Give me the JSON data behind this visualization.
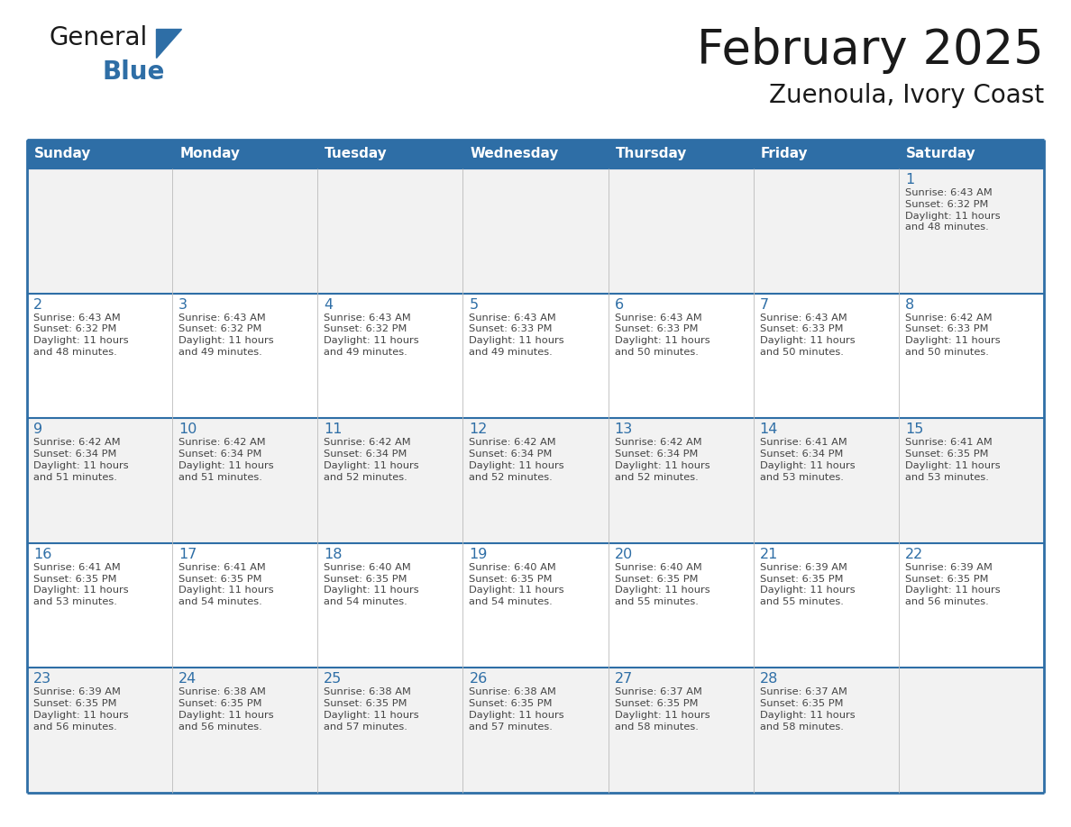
{
  "title": "February 2025",
  "subtitle": "Zuenoula, Ivory Coast",
  "header_bg": "#2E6EA6",
  "header_text_color": "#FFFFFF",
  "cell_bg_white": "#FFFFFF",
  "cell_bg_gray": "#F2F2F2",
  "border_color": "#2E6EA6",
  "border_color_light": "#AAAAAA",
  "day_number_color": "#2E6EA6",
  "cell_text_color": "#444444",
  "days_of_week": [
    "Sunday",
    "Monday",
    "Tuesday",
    "Wednesday",
    "Thursday",
    "Friday",
    "Saturday"
  ],
  "weeks": [
    [
      {
        "day": "",
        "info": ""
      },
      {
        "day": "",
        "info": ""
      },
      {
        "day": "",
        "info": ""
      },
      {
        "day": "",
        "info": ""
      },
      {
        "day": "",
        "info": ""
      },
      {
        "day": "",
        "info": ""
      },
      {
        "day": "1",
        "info": "Sunrise: 6:43 AM\nSunset: 6:32 PM\nDaylight: 11 hours\nand 48 minutes."
      }
    ],
    [
      {
        "day": "2",
        "info": "Sunrise: 6:43 AM\nSunset: 6:32 PM\nDaylight: 11 hours\nand 48 minutes."
      },
      {
        "day": "3",
        "info": "Sunrise: 6:43 AM\nSunset: 6:32 PM\nDaylight: 11 hours\nand 49 minutes."
      },
      {
        "day": "4",
        "info": "Sunrise: 6:43 AM\nSunset: 6:32 PM\nDaylight: 11 hours\nand 49 minutes."
      },
      {
        "day": "5",
        "info": "Sunrise: 6:43 AM\nSunset: 6:33 PM\nDaylight: 11 hours\nand 49 minutes."
      },
      {
        "day": "6",
        "info": "Sunrise: 6:43 AM\nSunset: 6:33 PM\nDaylight: 11 hours\nand 50 minutes."
      },
      {
        "day": "7",
        "info": "Sunrise: 6:43 AM\nSunset: 6:33 PM\nDaylight: 11 hours\nand 50 minutes."
      },
      {
        "day": "8",
        "info": "Sunrise: 6:42 AM\nSunset: 6:33 PM\nDaylight: 11 hours\nand 50 minutes."
      }
    ],
    [
      {
        "day": "9",
        "info": "Sunrise: 6:42 AM\nSunset: 6:34 PM\nDaylight: 11 hours\nand 51 minutes."
      },
      {
        "day": "10",
        "info": "Sunrise: 6:42 AM\nSunset: 6:34 PM\nDaylight: 11 hours\nand 51 minutes."
      },
      {
        "day": "11",
        "info": "Sunrise: 6:42 AM\nSunset: 6:34 PM\nDaylight: 11 hours\nand 52 minutes."
      },
      {
        "day": "12",
        "info": "Sunrise: 6:42 AM\nSunset: 6:34 PM\nDaylight: 11 hours\nand 52 minutes."
      },
      {
        "day": "13",
        "info": "Sunrise: 6:42 AM\nSunset: 6:34 PM\nDaylight: 11 hours\nand 52 minutes."
      },
      {
        "day": "14",
        "info": "Sunrise: 6:41 AM\nSunset: 6:34 PM\nDaylight: 11 hours\nand 53 minutes."
      },
      {
        "day": "15",
        "info": "Sunrise: 6:41 AM\nSunset: 6:35 PM\nDaylight: 11 hours\nand 53 minutes."
      }
    ],
    [
      {
        "day": "16",
        "info": "Sunrise: 6:41 AM\nSunset: 6:35 PM\nDaylight: 11 hours\nand 53 minutes."
      },
      {
        "day": "17",
        "info": "Sunrise: 6:41 AM\nSunset: 6:35 PM\nDaylight: 11 hours\nand 54 minutes."
      },
      {
        "day": "18",
        "info": "Sunrise: 6:40 AM\nSunset: 6:35 PM\nDaylight: 11 hours\nand 54 minutes."
      },
      {
        "day": "19",
        "info": "Sunrise: 6:40 AM\nSunset: 6:35 PM\nDaylight: 11 hours\nand 54 minutes."
      },
      {
        "day": "20",
        "info": "Sunrise: 6:40 AM\nSunset: 6:35 PM\nDaylight: 11 hours\nand 55 minutes."
      },
      {
        "day": "21",
        "info": "Sunrise: 6:39 AM\nSunset: 6:35 PM\nDaylight: 11 hours\nand 55 minutes."
      },
      {
        "day": "22",
        "info": "Sunrise: 6:39 AM\nSunset: 6:35 PM\nDaylight: 11 hours\nand 56 minutes."
      }
    ],
    [
      {
        "day": "23",
        "info": "Sunrise: 6:39 AM\nSunset: 6:35 PM\nDaylight: 11 hours\nand 56 minutes."
      },
      {
        "day": "24",
        "info": "Sunrise: 6:38 AM\nSunset: 6:35 PM\nDaylight: 11 hours\nand 56 minutes."
      },
      {
        "day": "25",
        "info": "Sunrise: 6:38 AM\nSunset: 6:35 PM\nDaylight: 11 hours\nand 57 minutes."
      },
      {
        "day": "26",
        "info": "Sunrise: 6:38 AM\nSunset: 6:35 PM\nDaylight: 11 hours\nand 57 minutes."
      },
      {
        "day": "27",
        "info": "Sunrise: 6:37 AM\nSunset: 6:35 PM\nDaylight: 11 hours\nand 58 minutes."
      },
      {
        "day": "28",
        "info": "Sunrise: 6:37 AM\nSunset: 6:35 PM\nDaylight: 11 hours\nand 58 minutes."
      },
      {
        "day": "",
        "info": ""
      }
    ]
  ],
  "logo_text_general": "General",
  "logo_text_blue": "Blue",
  "logo_color_general": "#1a1a1a",
  "logo_color_blue": "#2E6EA6",
  "logo_triangle_color": "#2E6EA6"
}
